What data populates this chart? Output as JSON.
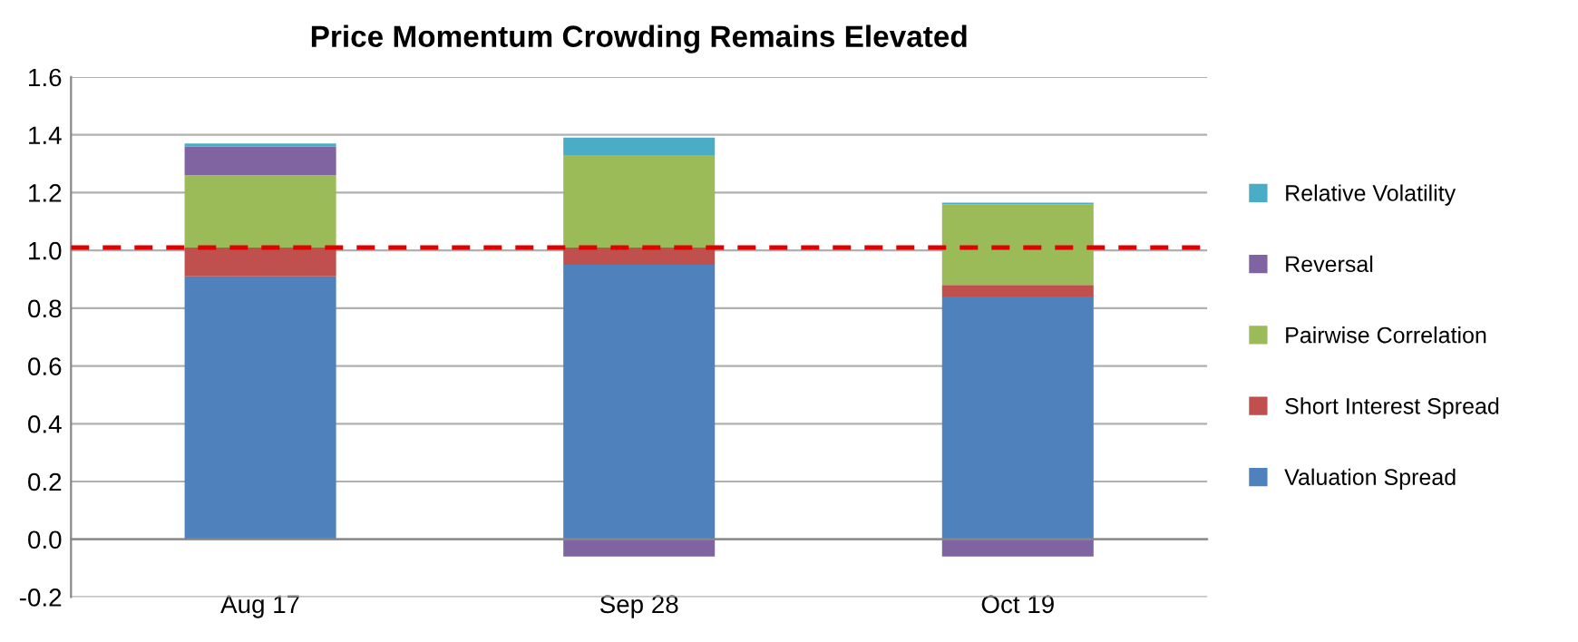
{
  "chart_data": {
    "type": "bar",
    "title": "Price Momentum Crowding Remains Elevated",
    "categories": [
      "Aug 17",
      "Sep 28",
      "Oct 19"
    ],
    "stacked": true,
    "series": [
      {
        "name": "Valuation Spread",
        "color": "#4f81bd",
        "values": [
          0.91,
          0.95,
          0.84
        ]
      },
      {
        "name": "Short Interest Spread",
        "color": "#c0504d",
        "values": [
          0.1,
          0.06,
          0.04
        ]
      },
      {
        "name": "Pairwise Correlation",
        "color": "#9bbb59",
        "values": [
          0.25,
          0.32,
          0.28
        ]
      },
      {
        "name": "Reversal",
        "color": "#8064a2",
        "values": [
          0.1,
          -0.06,
          -0.06
        ]
      },
      {
        "name": "Relative Volatility",
        "color": "#4bacc6",
        "values": [
          0.01,
          0.06,
          0.005
        ]
      }
    ],
    "ylim": [
      -0.2,
      1.6
    ],
    "yticks": [
      {
        "value": -0.2,
        "label": "-0.2"
      },
      {
        "value": 0,
        "label": "0.0"
      },
      {
        "value": 0.2,
        "label": "0.2"
      },
      {
        "value": 0.4,
        "label": "0.4"
      },
      {
        "value": 0.6,
        "label": "0.6"
      },
      {
        "value": 0.8,
        "label": "0.8"
      },
      {
        "value": 1.0,
        "label": "1.0"
      },
      {
        "value": 1.2,
        "label": "1.2"
      },
      {
        "value": 1.4,
        "label": "1.4"
      },
      {
        "value": 1.6,
        "label": "1.6"
      }
    ],
    "grid": "y",
    "legend": "right",
    "ref_lines": [
      {
        "axis": "y",
        "value": 1.01,
        "label": null,
        "color": "#e00000",
        "line_style": "dashed"
      }
    ]
  }
}
